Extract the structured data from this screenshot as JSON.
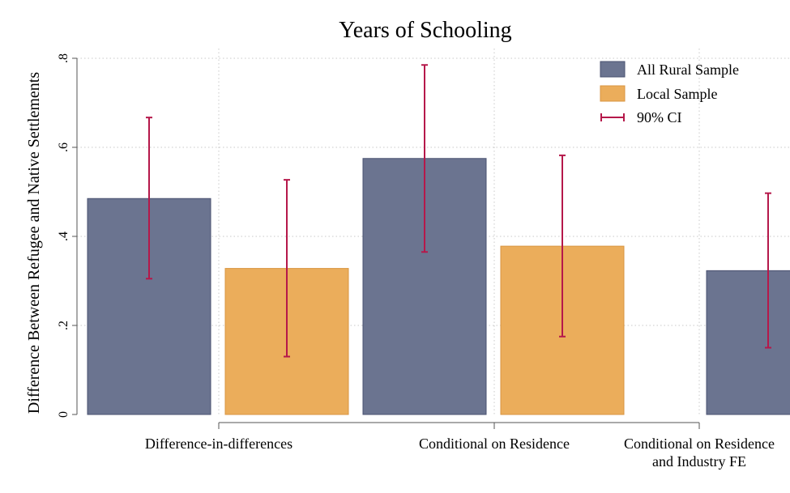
{
  "chart_data": {
    "type": "bar",
    "title": "Years of Schooling",
    "xlabel": "",
    "ylabel": "Difference Between Refugee and Native Settlements",
    "ylim": [
      0,
      0.8
    ],
    "yticks": [
      0,
      0.2,
      0.4,
      0.6,
      0.8
    ],
    "ytick_labels": [
      "0",
      ".2",
      ".4",
      ".6",
      ".8"
    ],
    "categories": [
      [
        "Difference-in-differences"
      ],
      [
        "Conditional on Residence"
      ],
      [
        "Conditional on Residence",
        "and Industry FE"
      ]
    ],
    "series": [
      {
        "name": "All Rural Sample",
        "color": "#6b7490",
        "values": [
          0.485,
          0.575,
          0.323
        ],
        "ci_low": [
          0.305,
          0.365,
          0.15
        ],
        "ci_high": [
          0.667,
          0.785,
          0.497
        ]
      },
      {
        "name": "Local Sample",
        "color": "#ebad5b",
        "values": [
          0.328,
          0.378,
          null
        ],
        "ci_low": [
          0.13,
          0.175,
          null
        ],
        "ci_high": [
          0.527,
          0.582,
          null
        ]
      }
    ],
    "ci_label": "90% CI",
    "ci_color": "#b5184a",
    "grid": true,
    "legend_position": "top-right"
  }
}
